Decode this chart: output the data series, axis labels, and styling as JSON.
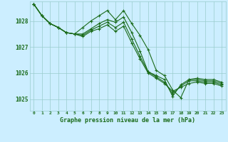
{
  "title": "Graphe pression niveau de la mer (hPa)",
  "x_labels": [
    "0",
    "1",
    "2",
    "3",
    "4",
    "5",
    "6",
    "7",
    "8",
    "9",
    "10",
    "11",
    "12",
    "13",
    "14",
    "15",
    "16",
    "17",
    "18",
    "19",
    "20",
    "21",
    "22",
    "23"
  ],
  "ylim": [
    1024.55,
    1028.75
  ],
  "yticks": [
    1025,
    1026,
    1027,
    1028
  ],
  "background_color": "#cceeff",
  "grid_color": "#99cccc",
  "line_color": "#1a6b1a",
  "series": [
    [
      1028.65,
      1028.2,
      1027.9,
      1027.75,
      1027.55,
      1027.5,
      1027.75,
      1028.0,
      1028.2,
      1028.4,
      1028.05,
      1028.4,
      1027.9,
      1027.45,
      1026.9,
      1026.1,
      1025.9,
      1025.35,
      1025.05,
      1025.75,
      1025.8,
      1025.75,
      1025.75,
      1025.65
    ],
    [
      1028.65,
      1028.2,
      1027.9,
      1027.75,
      1027.55,
      1027.5,
      1027.5,
      1027.7,
      1027.9,
      1028.05,
      1027.95,
      1028.15,
      1027.55,
      1026.85,
      1026.05,
      1025.9,
      1025.75,
      1025.1,
      1025.55,
      1025.75,
      1025.75,
      1025.7,
      1025.7,
      1025.6
    ],
    [
      1028.65,
      1028.2,
      1027.9,
      1027.75,
      1027.55,
      1027.5,
      1027.45,
      1027.65,
      1027.8,
      1027.95,
      1027.75,
      1027.95,
      1027.3,
      1026.65,
      1026.05,
      1025.85,
      1025.65,
      1025.2,
      1025.5,
      1025.7,
      1025.7,
      1025.65,
      1025.65,
      1025.55
    ],
    [
      1028.65,
      1028.2,
      1027.9,
      1027.75,
      1027.55,
      1027.5,
      1027.4,
      1027.6,
      1027.7,
      1027.85,
      1027.6,
      1027.8,
      1027.15,
      1026.55,
      1026.0,
      1025.8,
      1025.6,
      1025.3,
      1025.45,
      1025.6,
      1025.65,
      1025.6,
      1025.6,
      1025.5
    ]
  ],
  "marker": "+",
  "marker_size": 3,
  "linewidth": 0.8
}
